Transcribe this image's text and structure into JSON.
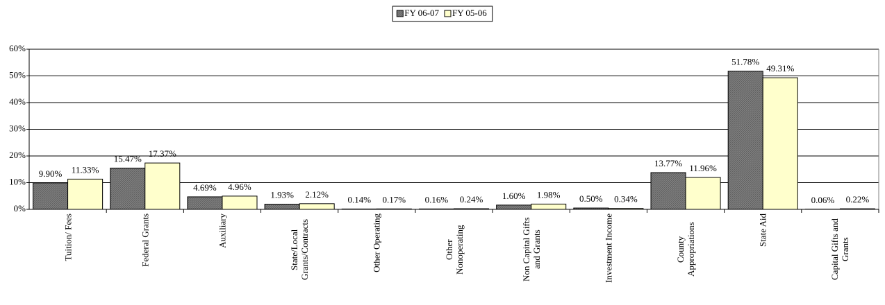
{
  "chart_data": {
    "type": "bar",
    "categories": [
      "Tuition/ Fees",
      "Federal Grants",
      "Auxiliary",
      "State/Local Grants/Contracts",
      "Other Operating",
      "Other Nonoperating",
      "Non Capital Gifts and Grants",
      "Investment Income",
      "County Appropriations",
      "State Aid",
      "Capital Gifts and Grants"
    ],
    "series": [
      {
        "name": "FY 06-07",
        "color": "#808080",
        "values": [
          9.9,
          15.47,
          4.69,
          1.93,
          0.14,
          0.16,
          1.6,
          0.5,
          13.77,
          51.78,
          0.06
        ],
        "value_labels": [
          "9.90%",
          "15.47%",
          "4.69%",
          "1.93%",
          "0.14%",
          "0.16%",
          "1.60%",
          "0.50%",
          "13.77%",
          "51.78%",
          "0.06%"
        ]
      },
      {
        "name": "FY 05-06",
        "color": "#ffffcc",
        "values": [
          11.33,
          17.37,
          4.96,
          2.12,
          0.17,
          0.24,
          1.98,
          0.34,
          11.96,
          49.31,
          0.22
        ],
        "value_labels": [
          "11.33%",
          "17.37%",
          "4.96%",
          "2.12%",
          "0.17%",
          "0.24%",
          "1.98%",
          "0.34%",
          "11.96%",
          "49.31%",
          "0.22%"
        ]
      }
    ],
    "ylim": [
      0,
      60
    ],
    "yticks": [
      {
        "value": 0,
        "label": "0%"
      },
      {
        "value": 10,
        "label": "10%"
      },
      {
        "value": 20,
        "label": "20%"
      },
      {
        "value": 30,
        "label": "30%"
      },
      {
        "value": 40,
        "label": "40%"
      },
      {
        "value": 50,
        "label": "50%"
      },
      {
        "value": 60,
        "label": "60%"
      }
    ],
    "grid": true
  }
}
